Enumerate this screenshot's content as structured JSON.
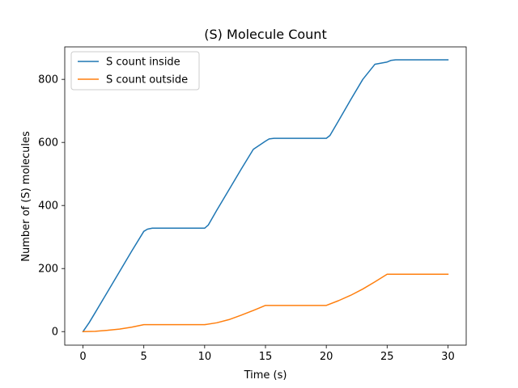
{
  "chart_data": {
    "type": "line",
    "title": "(S) Molecule Count",
    "xlabel": "Time (s)",
    "ylabel": "Number of (S) molecules",
    "xlim": [
      -1.5,
      31.5
    ],
    "ylim": [
      -43,
      903
    ],
    "xticks": [
      0,
      5,
      10,
      15,
      20,
      25,
      30
    ],
    "yticks": [
      0,
      200,
      400,
      600,
      800
    ],
    "grid": false,
    "legend_position": "upper-left",
    "series": [
      {
        "name": "S count inside",
        "color": "#1f77b4",
        "x": [
          0,
          0.5,
          1,
          2,
          3,
          4,
          5,
          5.3,
          5.7,
          6,
          7,
          8,
          9,
          10,
          10.3,
          11,
          12,
          13,
          14,
          15,
          15.3,
          15.7,
          16,
          17,
          18,
          19,
          20,
          20.3,
          21,
          22,
          23,
          24,
          25,
          25.3,
          25.7,
          26,
          27,
          28,
          29,
          30
        ],
        "values": [
          0,
          28,
          60,
          125,
          190,
          255,
          318,
          325,
          328,
          328,
          328,
          328,
          328,
          328,
          338,
          385,
          450,
          515,
          578,
          604,
          611,
          613,
          613,
          613,
          613,
          613,
          613,
          622,
          668,
          735,
          800,
          848,
          855,
          860,
          862,
          862,
          862,
          862,
          862,
          862
        ]
      },
      {
        "name": "S count outside",
        "color": "#ff7f0e",
        "x": [
          0,
          1,
          2,
          3,
          4,
          5,
          6,
          7,
          8,
          9,
          10,
          11,
          12,
          13,
          14,
          15,
          16,
          17,
          18,
          19,
          20,
          21,
          22,
          23,
          24,
          25,
          26,
          27,
          28,
          29,
          30
        ],
        "values": [
          0,
          1,
          4,
          8,
          14,
          22,
          22,
          22,
          22,
          22,
          22,
          28,
          38,
          52,
          67,
          83,
          83,
          83,
          83,
          83,
          83,
          98,
          115,
          135,
          158,
          182,
          182,
          182,
          182,
          182,
          182
        ]
      }
    ]
  }
}
